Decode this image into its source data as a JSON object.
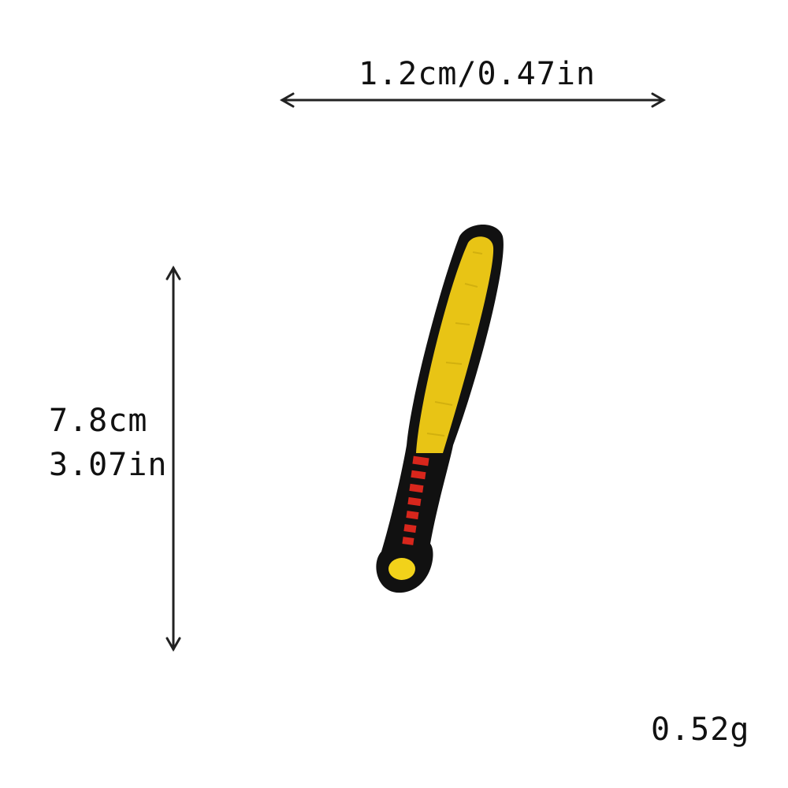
{
  "dimensions": {
    "width_label": "1.2cm/0.47in",
    "height_cm_label": "7.8cm",
    "height_in_label": "3.07in"
  },
  "weight_label": "0.52g",
  "product": {
    "icon": "baseball-bat-patch",
    "colors": {
      "border": "#111111",
      "barrel": "#e8c415",
      "barrel_stitch": "#c9a80c",
      "grip": "#d8261c",
      "knob": "#f2d21a"
    }
  },
  "arrow_color": "#222222"
}
